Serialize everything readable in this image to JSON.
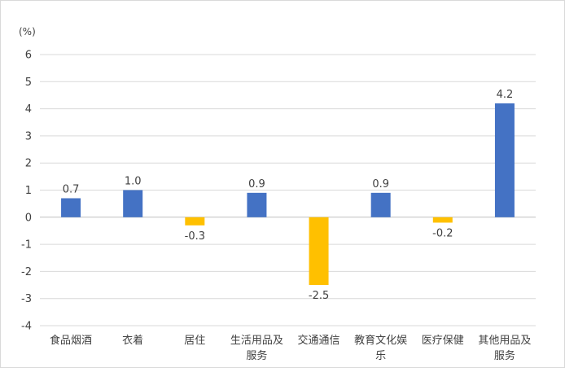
{
  "chart_data": {
    "type": "bar",
    "unit_label": "(%)",
    "categories": [
      [
        "食品烟酒"
      ],
      [
        "衣着"
      ],
      [
        "居住"
      ],
      [
        "生活用品及",
        "服务"
      ],
      [
        "交通通信"
      ],
      [
        "教育文化娱",
        "乐"
      ],
      [
        "医疗保健"
      ],
      [
        "其他用品及",
        "服务"
      ]
    ],
    "values": [
      0.7,
      1.0,
      -0.3,
      0.9,
      -2.5,
      0.9,
      -0.2,
      4.2
    ],
    "value_labels": [
      "0.7",
      "1.0",
      "-0.3",
      "0.9",
      "-2.5",
      "0.9",
      "-0.2",
      "4.2"
    ],
    "ylim": [
      -4,
      6
    ],
    "yticks": [
      6,
      5,
      4,
      3,
      2,
      1,
      0,
      -1,
      -2,
      -3,
      -4
    ],
    "ytick_labels": [
      "6",
      "5",
      "4",
      "3",
      "2",
      "1",
      "0",
      "-1",
      "-2",
      "-3",
      "-4"
    ],
    "grid": true,
    "colors": {
      "positive": "#4472C4",
      "negative": "#FFC000",
      "grid": "#d9d9d9",
      "axis": "#bfbfbf"
    }
  }
}
